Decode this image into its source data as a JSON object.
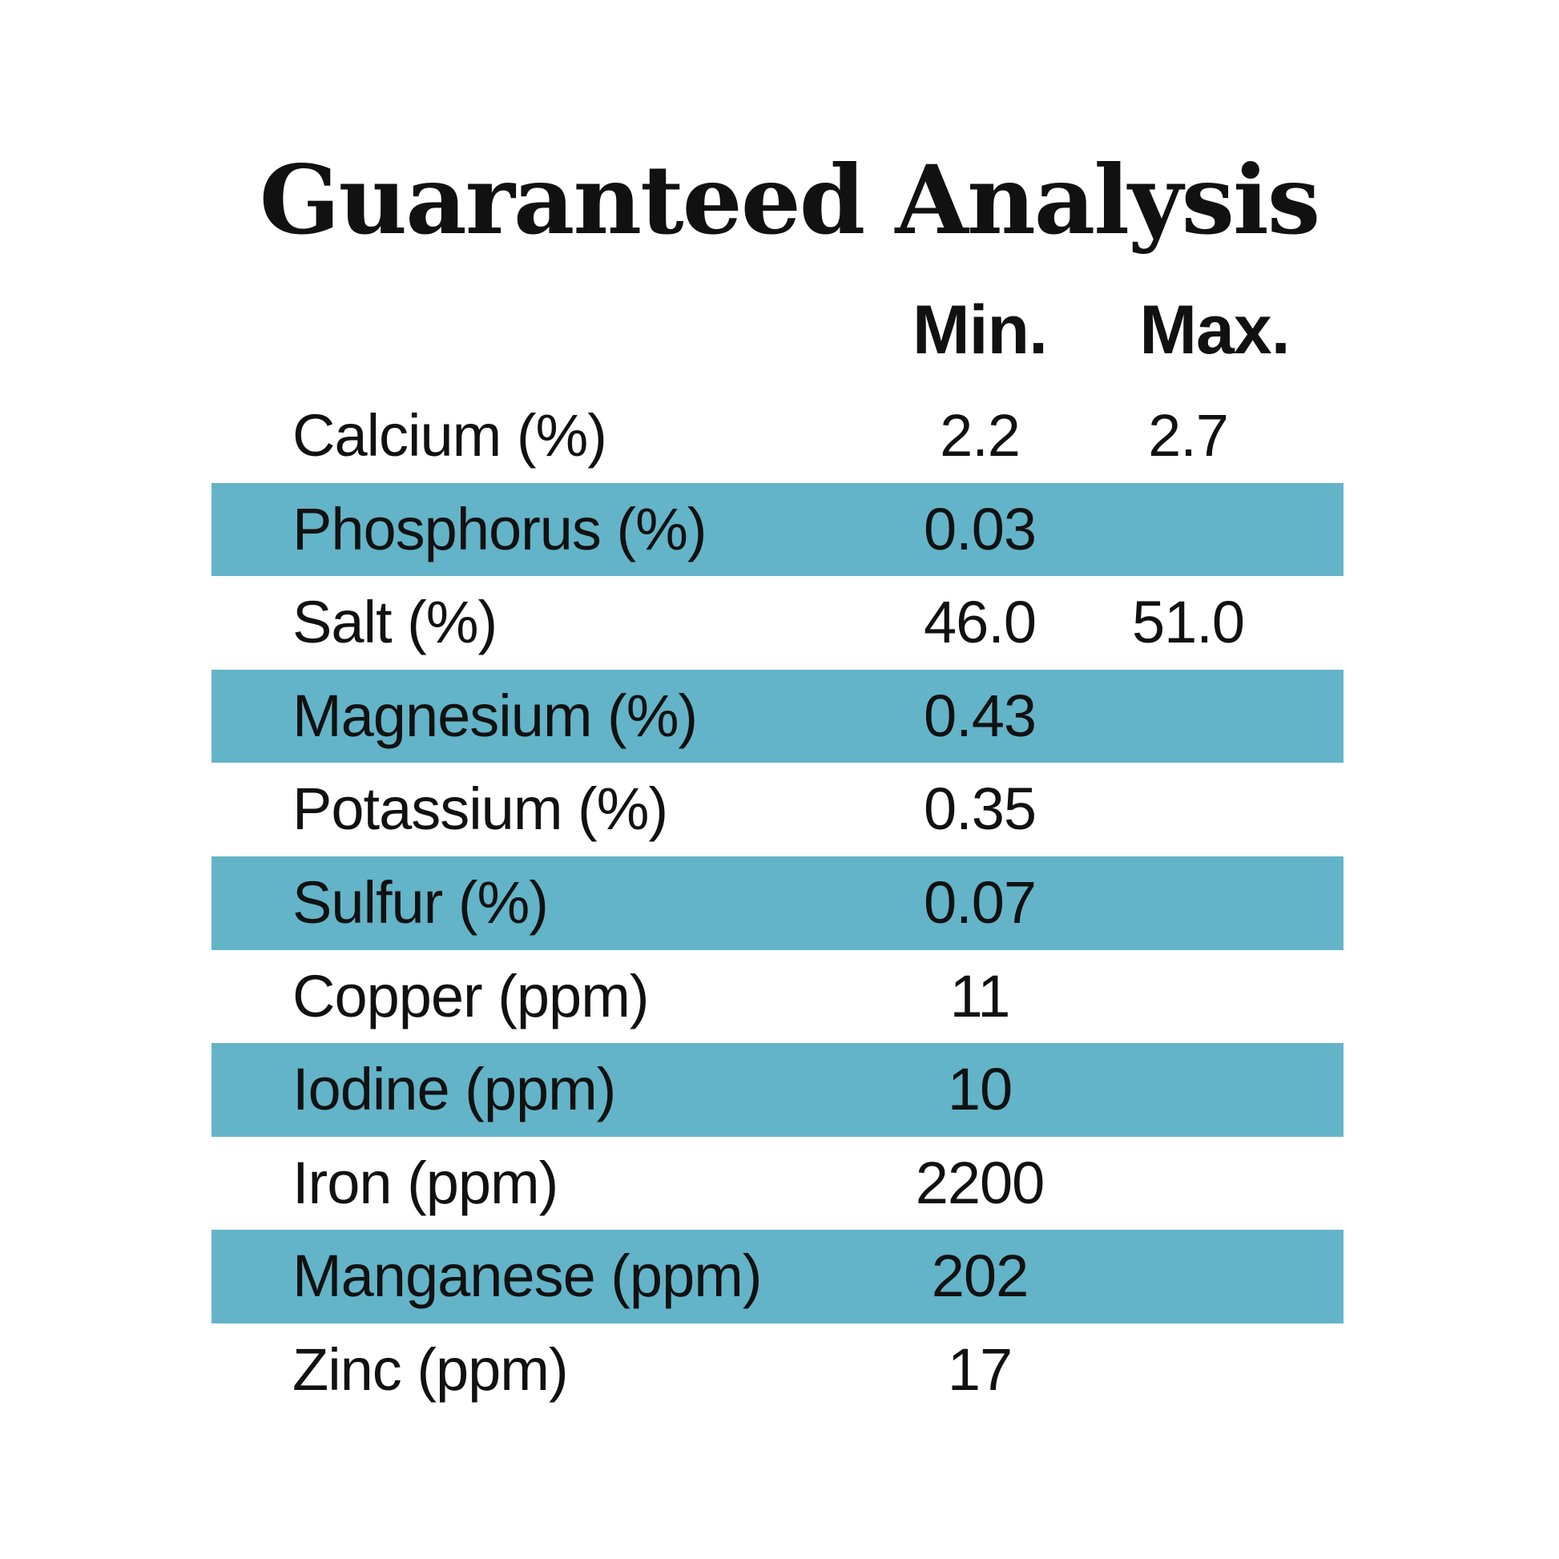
{
  "title": "Guaranteed Analysis",
  "columns": {
    "min": "Min.",
    "max": "Max."
  },
  "colors": {
    "band": "#63b4c8",
    "text": "#111111",
    "background": "#ffffff"
  },
  "rows": [
    {
      "label": "Calcium (%)",
      "min": "2.2",
      "max": "2.7",
      "shaded": false
    },
    {
      "label": "Phosphorus (%)",
      "min": "0.03",
      "max": "",
      "shaded": true
    },
    {
      "label": "Salt (%)",
      "min": "46.0",
      "max": "51.0",
      "shaded": false
    },
    {
      "label": "Magnesium (%)",
      "min": "0.43",
      "max": "",
      "shaded": true
    },
    {
      "label": "Potassium (%)",
      "min": "0.35",
      "max": "",
      "shaded": false
    },
    {
      "label": "Sulfur (%)",
      "min": "0.07",
      "max": "",
      "shaded": true
    },
    {
      "label": "Copper (ppm)",
      "min": "11",
      "max": "",
      "shaded": false
    },
    {
      "label": "Iodine (ppm)",
      "min": "10",
      "max": "",
      "shaded": true
    },
    {
      "label": "Iron (ppm)",
      "min": "2200",
      "max": "",
      "shaded": false
    },
    {
      "label": "Manganese (ppm)",
      "min": "202",
      "max": "",
      "shaded": true
    },
    {
      "label": "Zinc (ppm)",
      "min": "17",
      "max": "",
      "shaded": false
    }
  ]
}
